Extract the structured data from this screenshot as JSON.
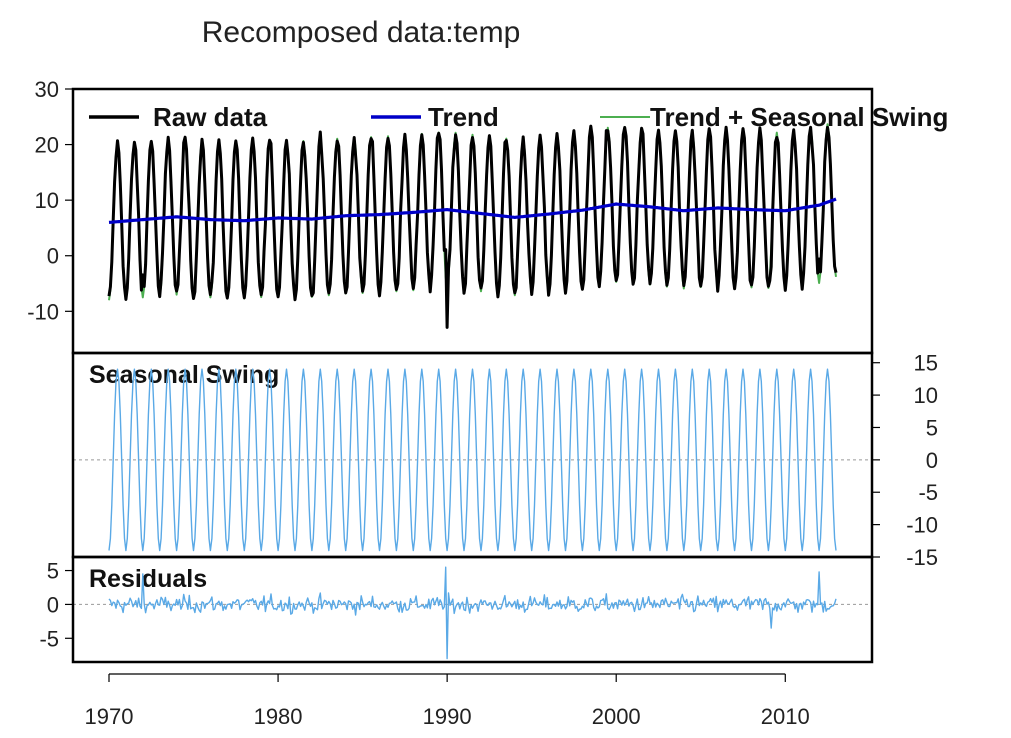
{
  "title": "Recomposed data:temp",
  "colors": {
    "raw": "#000000",
    "trend": "#0000c8",
    "trend_seasonal": "#4caf50",
    "seasonal": "#5aa9e6",
    "residuals": "#5aa9e6",
    "zero_line": "#999999",
    "frame": "#000000"
  },
  "chart_data": {
    "type": "line",
    "title": "Recomposed data:temp",
    "x_ticks": [
      1970,
      1980,
      1990,
      2000,
      2010
    ],
    "xlim": [
      1970,
      2013
    ],
    "grid": false,
    "legend_position": "top",
    "legend": [
      "Raw data",
      "Trend",
      "Trend + Seasonal Swing"
    ],
    "panels": [
      {
        "label": "",
        "ylim": [
          -17.5,
          30
        ],
        "y_ticks": [
          -10,
          0,
          10,
          20,
          30
        ],
        "y_axis_side": "left",
        "series": [
          {
            "name": "Raw data",
            "kind": "raw",
            "amplitude": 14,
            "noise": 2.6,
            "start_phase": "min"
          },
          {
            "name": "Trend + Seasonal Swing",
            "kind": "trend_seasonal",
            "amplitude": 14
          },
          {
            "name": "Trend",
            "kind": "trend",
            "x": [
              1970,
              1972,
              1974,
              1976,
              1978,
              1980,
              1982,
              1984,
              1986,
              1988,
              1990,
              1992,
              1994,
              1996,
              1998,
              2000,
              2002,
              2004,
              2006,
              2008,
              2010,
              2012,
              2013
            ],
            "y": [
              6,
              6.5,
              7,
              6.5,
              6.3,
              6.8,
              6.6,
              7.2,
              7.4,
              7.8,
              8.3,
              7.6,
              6.9,
              7.5,
              8.2,
              9.3,
              8.8,
              8.1,
              8.6,
              8.3,
              8.1,
              9.1,
              10.2
            ]
          }
        ]
      },
      {
        "label": "Seasonal Swing",
        "ylim": [
          -15,
          16.5
        ],
        "y_ticks": [
          -15,
          -10,
          -5,
          0,
          5,
          10,
          15
        ],
        "y_axis_side": "right",
        "series": [
          {
            "name": "Seasonal Swing",
            "kind": "seasonal",
            "amplitude": 14
          }
        ]
      },
      {
        "label": "Residuals",
        "ylim": [
          -8.5,
          7
        ],
        "y_ticks": [
          -5,
          0,
          5
        ],
        "y_axis_side": "left",
        "series": [
          {
            "name": "Residuals",
            "kind": "residuals",
            "noise": 2.2,
            "spikes": [
              [
                1990.0,
                -8
              ],
              [
                1989.9,
                5.5
              ],
              [
                2012.0,
                4.8
              ],
              [
                1972.0,
                4.5
              ],
              [
                2009.2,
                -3.5
              ]
            ]
          }
        ]
      }
    ]
  }
}
